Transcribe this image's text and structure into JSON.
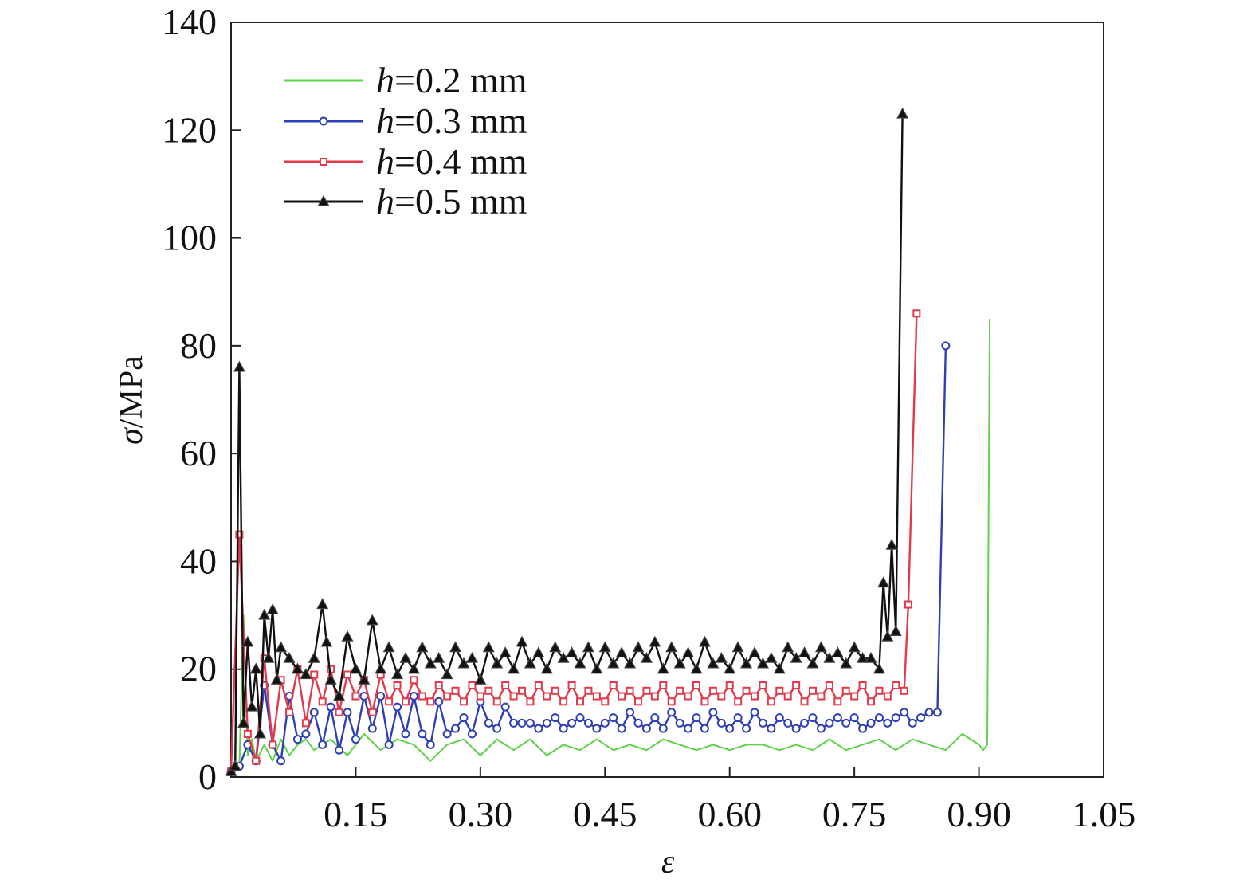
{
  "chart_data": {
    "type": "line",
    "xlabel": "ε",
    "ylabel_symbol": "σ",
    "ylabel_unit": "/MPa",
    "xlim": [
      0,
      1.05
    ],
    "ylim": [
      0,
      140
    ],
    "x_ticks": [
      0.15,
      0.3,
      0.45,
      0.6,
      0.75,
      0.9,
      1.05
    ],
    "x_tick_labels": [
      "0.15",
      "0.30",
      "0.45",
      "0.60",
      "0.75",
      "0.90",
      "1.05"
    ],
    "y_ticks": [
      0,
      20,
      40,
      60,
      80,
      100,
      120,
      140
    ],
    "y_tick_labels": [
      "0",
      "20",
      "40",
      "60",
      "80",
      "100",
      "120",
      "140"
    ],
    "grid": false,
    "legend_position": "top-left",
    "series": [
      {
        "name_var": "h",
        "name_rest": "=0.2 mm",
        "color": "#5fd14a",
        "marker": "none",
        "x": [
          0.0,
          0.01,
          0.015,
          0.02,
          0.025,
          0.03,
          0.04,
          0.05,
          0.06,
          0.07,
          0.08,
          0.09,
          0.1,
          0.12,
          0.14,
          0.16,
          0.18,
          0.2,
          0.22,
          0.24,
          0.26,
          0.28,
          0.3,
          0.32,
          0.34,
          0.36,
          0.38,
          0.4,
          0.42,
          0.44,
          0.46,
          0.48,
          0.5,
          0.52,
          0.54,
          0.56,
          0.58,
          0.6,
          0.62,
          0.64,
          0.66,
          0.68,
          0.7,
          0.72,
          0.74,
          0.76,
          0.78,
          0.8,
          0.82,
          0.84,
          0.86,
          0.88,
          0.89,
          0.9,
          0.905,
          0.91,
          0.913
        ],
        "y": [
          1,
          2,
          30,
          4,
          7,
          3,
          6,
          3,
          7,
          4,
          6,
          7,
          5,
          7,
          4,
          8,
          5,
          7,
          6,
          3,
          6,
          7,
          4,
          7,
          5,
          7,
          4,
          6,
          5,
          7,
          5,
          6,
          5,
          7,
          6,
          5,
          6,
          5,
          6,
          6,
          5,
          6,
          5,
          7,
          5,
          6,
          7,
          5,
          7,
          6,
          5,
          8,
          7,
          6,
          5,
          6,
          85
        ]
      },
      {
        "name_var": "h",
        "name_rest": "=0.3 mm",
        "color": "#2e3fb5",
        "marker": "circle",
        "x": [
          0.0,
          0.01,
          0.02,
          0.03,
          0.04,
          0.05,
          0.06,
          0.07,
          0.08,
          0.09,
          0.1,
          0.11,
          0.12,
          0.13,
          0.14,
          0.15,
          0.16,
          0.17,
          0.18,
          0.19,
          0.2,
          0.21,
          0.22,
          0.23,
          0.24,
          0.25,
          0.26,
          0.27,
          0.28,
          0.29,
          0.3,
          0.31,
          0.32,
          0.33,
          0.34,
          0.35,
          0.36,
          0.37,
          0.38,
          0.39,
          0.4,
          0.41,
          0.42,
          0.43,
          0.44,
          0.45,
          0.46,
          0.47,
          0.48,
          0.49,
          0.5,
          0.51,
          0.52,
          0.53,
          0.54,
          0.55,
          0.56,
          0.57,
          0.58,
          0.59,
          0.6,
          0.61,
          0.62,
          0.63,
          0.64,
          0.65,
          0.66,
          0.67,
          0.68,
          0.69,
          0.7,
          0.71,
          0.72,
          0.73,
          0.74,
          0.75,
          0.76,
          0.77,
          0.78,
          0.79,
          0.8,
          0.81,
          0.82,
          0.83,
          0.84,
          0.85,
          0.86
        ],
        "y": [
          1,
          2,
          6,
          3,
          17,
          6,
          3,
          15,
          7,
          8,
          12,
          6,
          13,
          5,
          12,
          7,
          15,
          9,
          15,
          6,
          13,
          8,
          15,
          8,
          6,
          14,
          8,
          9,
          11,
          8,
          14,
          10,
          9,
          13,
          10,
          10,
          10,
          9,
          10,
          11,
          9,
          10,
          11,
          10,
          9,
          10,
          11,
          9,
          12,
          10,
          9,
          11,
          9,
          12,
          10,
          9,
          11,
          9,
          12,
          10,
          9,
          11,
          9,
          12,
          10,
          9,
          11,
          10,
          9,
          10,
          11,
          9,
          10,
          11,
          10,
          11,
          9,
          10,
          11,
          10,
          11,
          12,
          10,
          11,
          12,
          12,
          80
        ]
      },
      {
        "name_var": "h",
        "name_rest": "=0.4 mm",
        "color": "#e23a4a",
        "marker": "square",
        "x": [
          0.0,
          0.01,
          0.02,
          0.03,
          0.04,
          0.05,
          0.06,
          0.07,
          0.08,
          0.09,
          0.1,
          0.11,
          0.12,
          0.13,
          0.14,
          0.15,
          0.16,
          0.17,
          0.18,
          0.19,
          0.2,
          0.21,
          0.22,
          0.23,
          0.24,
          0.25,
          0.26,
          0.27,
          0.28,
          0.29,
          0.3,
          0.31,
          0.32,
          0.33,
          0.34,
          0.35,
          0.36,
          0.37,
          0.38,
          0.39,
          0.4,
          0.41,
          0.42,
          0.43,
          0.44,
          0.45,
          0.46,
          0.47,
          0.48,
          0.49,
          0.5,
          0.51,
          0.52,
          0.53,
          0.54,
          0.55,
          0.56,
          0.57,
          0.58,
          0.59,
          0.6,
          0.61,
          0.62,
          0.63,
          0.64,
          0.65,
          0.66,
          0.67,
          0.68,
          0.69,
          0.7,
          0.71,
          0.72,
          0.73,
          0.74,
          0.75,
          0.76,
          0.77,
          0.78,
          0.79,
          0.8,
          0.81,
          0.815,
          0.825
        ],
        "y": [
          1,
          45,
          8,
          3,
          22,
          6,
          18,
          12,
          20,
          10,
          19,
          14,
          20,
          12,
          19,
          15,
          18,
          12,
          19,
          14,
          17,
          14,
          18,
          15,
          14,
          17,
          15,
          16,
          14,
          17,
          15,
          16,
          14,
          17,
          15,
          16,
          14,
          17,
          15,
          16,
          14,
          17,
          14,
          16,
          15,
          14,
          17,
          15,
          16,
          14,
          16,
          15,
          17,
          14,
          16,
          15,
          17,
          14,
          16,
          15,
          17,
          14,
          16,
          15,
          17,
          14,
          16,
          15,
          17,
          14,
          16,
          15,
          17,
          14,
          16,
          15,
          17,
          14,
          16,
          15,
          17,
          16,
          32,
          86
        ]
      },
      {
        "name_var": "h",
        "name_rest": "=0.5 mm",
        "color": "#111111",
        "marker": "triangle",
        "x": [
          0.0,
          0.005,
          0.01,
          0.015,
          0.02,
          0.025,
          0.03,
          0.035,
          0.04,
          0.045,
          0.05,
          0.055,
          0.06,
          0.07,
          0.08,
          0.09,
          0.1,
          0.11,
          0.115,
          0.12,
          0.13,
          0.14,
          0.15,
          0.16,
          0.17,
          0.18,
          0.19,
          0.2,
          0.21,
          0.22,
          0.23,
          0.24,
          0.25,
          0.26,
          0.27,
          0.28,
          0.29,
          0.3,
          0.31,
          0.32,
          0.33,
          0.34,
          0.35,
          0.36,
          0.37,
          0.38,
          0.39,
          0.4,
          0.41,
          0.42,
          0.43,
          0.44,
          0.45,
          0.46,
          0.47,
          0.48,
          0.49,
          0.5,
          0.51,
          0.52,
          0.53,
          0.54,
          0.55,
          0.56,
          0.57,
          0.58,
          0.59,
          0.6,
          0.61,
          0.62,
          0.63,
          0.64,
          0.65,
          0.66,
          0.67,
          0.68,
          0.69,
          0.7,
          0.71,
          0.72,
          0.73,
          0.74,
          0.75,
          0.76,
          0.77,
          0.78,
          0.785,
          0.79,
          0.795,
          0.8,
          0.808
        ],
        "y": [
          1,
          2,
          76,
          10,
          25,
          13,
          20,
          8,
          30,
          22,
          31,
          18,
          24,
          22,
          20,
          19,
          22,
          32,
          25,
          18,
          15,
          26,
          20,
          18,
          29,
          20,
          24,
          19,
          22,
          20,
          24,
          21,
          22,
          19,
          24,
          21,
          22,
          18,
          24,
          21,
          23,
          20,
          25,
          21,
          23,
          20,
          24,
          22,
          23,
          21,
          24,
          20,
          24,
          21,
          23,
          21,
          24,
          22,
          25,
          20,
          24,
          21,
          23,
          20,
          25,
          21,
          22,
          20,
          24,
          21,
          23,
          21,
          22,
          20,
          24,
          22,
          23,
          21,
          24,
          22,
          23,
          21,
          24,
          22,
          22,
          20,
          36,
          26,
          43,
          27,
          123
        ]
      }
    ]
  }
}
